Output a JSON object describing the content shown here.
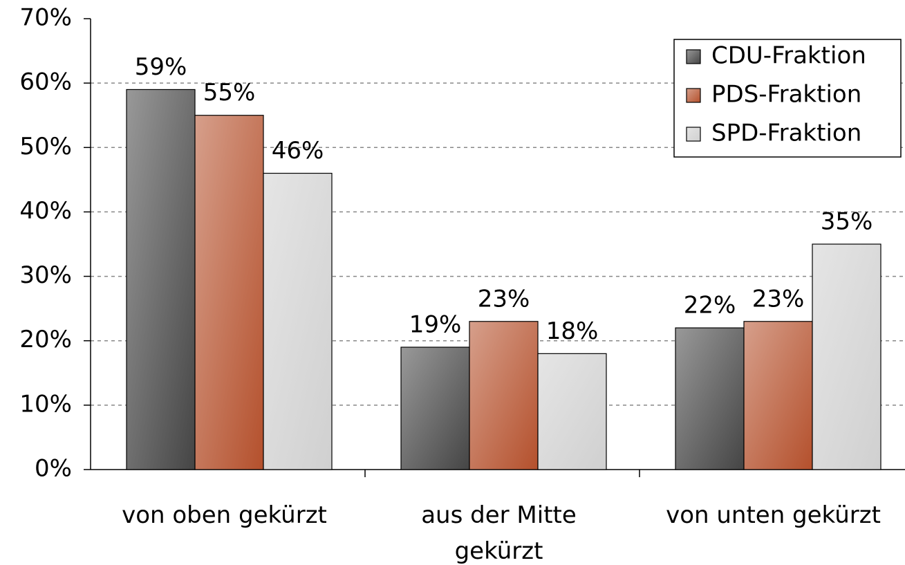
{
  "chart_data": {
    "type": "bar",
    "categories": [
      "von oben  gekürzt",
      "aus der Mitte\ngekürzt",
      "von unten gekürzt"
    ],
    "series": [
      {
        "name": "CDU-Fraktion",
        "color": "#454545",
        "values": [
          59,
          19,
          22
        ],
        "value_labels": [
          "59%",
          "19%",
          "22%"
        ]
      },
      {
        "name": "PDS-Fraktion",
        "color": "#b4502c",
        "values": [
          55,
          23,
          23
        ],
        "value_labels": [
          "55%",
          "23%",
          "23%"
        ]
      },
      {
        "name": "SPD-Fraktion",
        "color": "#d0d0d0",
        "values": [
          46,
          18,
          35
        ],
        "value_labels": [
          "46%",
          "18%",
          "35%"
        ]
      }
    ],
    "ylim": [
      0,
      70
    ],
    "yticks": [
      {
        "value": 0,
        "label": "0%"
      },
      {
        "value": 10,
        "label": "10%"
      },
      {
        "value": 20,
        "label": "20%"
      },
      {
        "value": 30,
        "label": "30%"
      },
      {
        "value": 40,
        "label": "40%"
      },
      {
        "value": 50,
        "label": "50%"
      },
      {
        "value": 60,
        "label": "60%"
      },
      {
        "value": 70,
        "label": "70%"
      }
    ],
    "grid": true,
    "legend": "upper right"
  }
}
